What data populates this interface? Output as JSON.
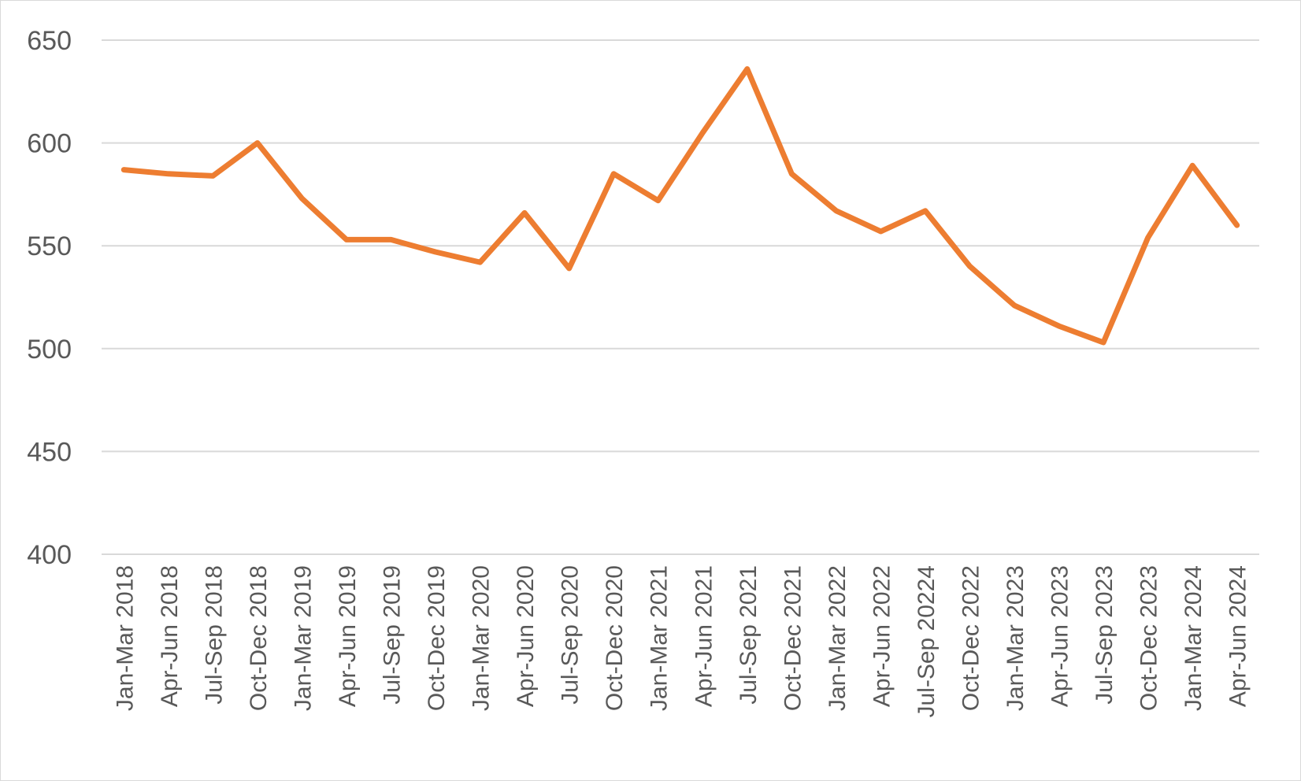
{
  "chart_data": {
    "type": "line",
    "title": "",
    "xlabel": "",
    "ylabel": "",
    "ylim": [
      400,
      650
    ],
    "yticks": [
      400,
      450,
      500,
      550,
      600,
      650
    ],
    "grid": true,
    "legend": "none",
    "categories": [
      "Jan-Mar 2018",
      "Apr-Jun 2018",
      "Jul-Sep 2018",
      "Oct-Dec 2018",
      "Jan-Mar 2019",
      "Apr-Jun 2019",
      "Jul-Sep 2019",
      "Oct-Dec 2019",
      "Jan-Mar 2020",
      "Apr-Jun 2020",
      "Jul-Sep 2020",
      "Oct-Dec 2020",
      "Jan-Mar 2021",
      "Apr-Jun 2021",
      "Jul-Sep 2021",
      "Oct-Dec 2021",
      "Jan-Mar 2022",
      "Apr-Jun 2022",
      "Jul-Sep 20224",
      "Oct-Dec 2022",
      "Jan-Mar 2023",
      "Apr-Jun 2023",
      "Jul-Sep 2023",
      "Oct-Dec 2023",
      "Jan-Mar 2024",
      "Apr-Jun 2024"
    ],
    "series": [
      {
        "color": "#ed7d31",
        "values": [
          587,
          585,
          584,
          600,
          573,
          553,
          553,
          547,
          542,
          566,
          539,
          585,
          572,
          605,
          636,
          585,
          567,
          557,
          567,
          540,
          521,
          511,
          503,
          554,
          589,
          560
        ]
      }
    ]
  },
  "colors": {
    "line": "#ed7d31",
    "grid": "#d9d9d9",
    "text": "#595959"
  }
}
